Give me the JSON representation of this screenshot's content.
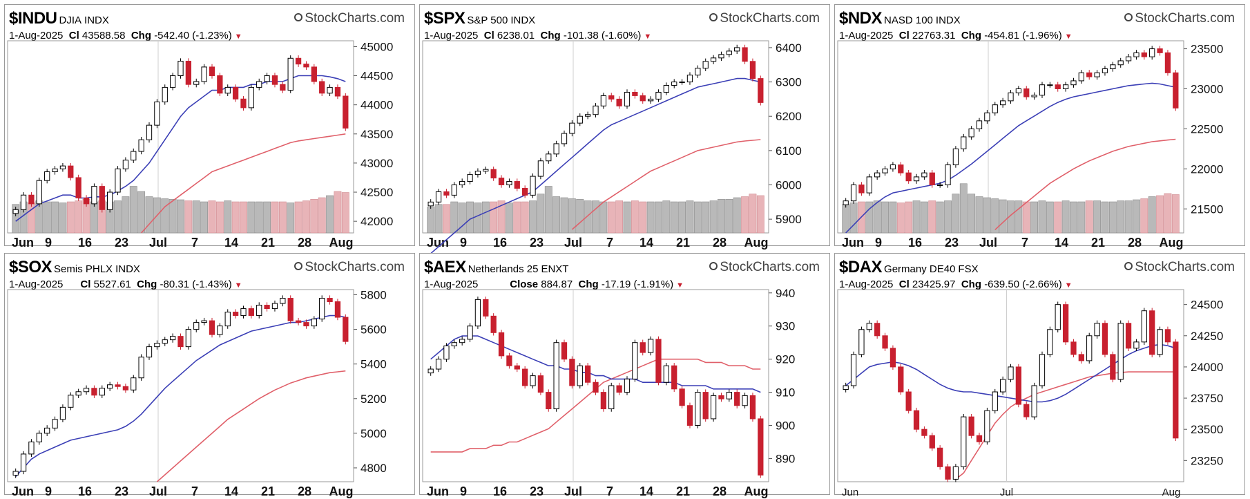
{
  "colors": {
    "up": "#000000",
    "down": "#c8202f",
    "ma_short": "#3b3fb6",
    "ma_long": "#e0606a",
    "vol_up": "#b9b9b9",
    "vol_down": "#e8b4b8"
  },
  "brand": "StockCharts.com",
  "panels": [
    {
      "symbol": "$INDU",
      "name": "DJIA",
      "exchange": "INDX",
      "date": "1-Aug-2025",
      "close_label": "Cl",
      "close": "43588.58",
      "chg_label": "Chg",
      "chg": "-542.40 (-1.23%)"
    },
    {
      "symbol": "$SPX",
      "name": "S&P 500",
      "exchange": "INDX",
      "date": "1-Aug-2025",
      "close_label": "Cl",
      "close": "6238.01",
      "chg_label": "Chg",
      "chg": "-101.38 (-1.60%)"
    },
    {
      "symbol": "$NDX",
      "name": "NASD 100",
      "exchange": "INDX",
      "date": "1-Aug-2025",
      "close_label": "Cl",
      "close": "22763.31",
      "chg_label": "Chg",
      "chg": "-454.81 (-1.96%)"
    },
    {
      "symbol": "$SOX",
      "name": "Semis PHLX",
      "exchange": "INDX",
      "date": "1-Aug-2025",
      "close_label": "Cl",
      "close": "5527.61",
      "chg_label": "Chg",
      "chg": "-80.31 (-1.43%)"
    },
    {
      "symbol": "$AEX",
      "name": "Netherlands 25",
      "exchange": "ENXT",
      "date": "1-Aug-2025",
      "close_label": "Close",
      "close": "884.87",
      "chg_label": "Chg",
      "chg": "-17.19 (-1.91%)"
    },
    {
      "symbol": "$DAX",
      "name": "Germany DE40",
      "exchange": "FSX",
      "date": "1-Aug-2025",
      "close_label": "Cl",
      "close": "23425.97",
      "chg_label": "Chg",
      "chg": "-639.50 (-2.66%)"
    }
  ],
  "chart_data": [
    {
      "type": "candlestick",
      "ylim": [
        41800,
        45100
      ],
      "yticks": [
        "45000",
        "44500",
        "44000",
        "43500",
        "43000",
        "42500",
        "42000"
      ],
      "volume": true,
      "xticks": [
        "Jun",
        "9",
        "16",
        "23",
        "Jul",
        "7",
        "14",
        "21",
        "28",
        "Aug"
      ],
      "close": [
        42200,
        42450,
        42300,
        42700,
        42850,
        42900,
        42950,
        42750,
        42400,
        42300,
        42600,
        42200,
        42500,
        42900,
        43050,
        43200,
        43400,
        43650,
        44050,
        44300,
        44500,
        44750,
        44350,
        44400,
        44650,
        44500,
        44200,
        44300,
        44100,
        43950,
        44300,
        44400,
        44500,
        44350,
        44250,
        44800,
        44700,
        44650,
        44400,
        44200,
        44300,
        44150,
        43600
      ],
      "ma_short": [
        42000,
        42100,
        42200,
        42300,
        42350,
        42400,
        42450,
        42450,
        42400,
        42400,
        42420,
        42420,
        42450,
        42520,
        42600,
        42700,
        42850,
        43000,
        43200,
        43400,
        43600,
        43800,
        43950,
        44050,
        44150,
        44250,
        44250,
        44300,
        44300,
        44300,
        44350,
        44350,
        44400,
        44400,
        44400,
        44450,
        44500,
        44500,
        44500,
        44500,
        44480,
        44450,
        44400
      ],
      "ma_long": [
        null,
        null,
        null,
        null,
        null,
        null,
        null,
        null,
        null,
        null,
        null,
        null,
        null,
        null,
        null,
        null,
        41800,
        41950,
        42100,
        42250,
        42350,
        42450,
        42550,
        42650,
        42750,
        42850,
        42900,
        42950,
        43000,
        43050,
        43100,
        43150,
        43200,
        43250,
        43300,
        43350,
        43380,
        43400,
        43420,
        43440,
        43460,
        43480,
        43500
      ],
      "vol": [
        0.55,
        0.6,
        0.58,
        0.62,
        0.6,
        0.6,
        0.58,
        0.6,
        0.62,
        0.65,
        0.6,
        0.62,
        0.6,
        0.62,
        0.7,
        0.9,
        0.8,
        0.7,
        0.68,
        0.66,
        0.65,
        0.64,
        0.62,
        0.62,
        0.6,
        0.62,
        0.6,
        0.62,
        0.6,
        0.6,
        0.6,
        0.6,
        0.6,
        0.6,
        0.6,
        0.58,
        0.6,
        0.62,
        0.65,
        0.68,
        0.72,
        0.8,
        0.78
      ]
    },
    {
      "type": "candlestick",
      "ylim": [
        5860,
        6420
      ],
      "yticks": [
        "6400",
        "6300",
        "6200",
        "6100",
        "6000",
        "5900"
      ],
      "volume": true,
      "xticks": [
        "Jun",
        "9",
        "16",
        "23",
        "Jul",
        "7",
        "14",
        "21",
        "28",
        "Aug"
      ],
      "close": [
        5950,
        5980,
        5970,
        6000,
        6010,
        6030,
        6040,
        6045,
        6020,
        6000,
        6010,
        5990,
        5970,
        6025,
        6070,
        6090,
        6120,
        6150,
        6180,
        6200,
        6205,
        6230,
        6260,
        6250,
        6230,
        6270,
        6260,
        6245,
        6250,
        6270,
        6290,
        6300,
        6300,
        6320,
        6340,
        6360,
        6370,
        6380,
        6390,
        6400,
        6360,
        6310,
        6240
      ],
      "ma_short": [
        5800,
        5820,
        5840,
        5860,
        5880,
        5900,
        5910,
        5920,
        5930,
        5940,
        5950,
        5960,
        5970,
        5980,
        6000,
        6020,
        6040,
        6060,
        6080,
        6100,
        6120,
        6140,
        6160,
        6175,
        6185,
        6195,
        6205,
        6215,
        6225,
        6235,
        6245,
        6255,
        6265,
        6275,
        6285,
        6290,
        6295,
        6300,
        6305,
        6310,
        6310,
        6305,
        6300
      ],
      "ma_long": [
        null,
        null,
        null,
        null,
        null,
        null,
        null,
        null,
        null,
        null,
        null,
        null,
        null,
        null,
        null,
        null,
        null,
        null,
        5870,
        5890,
        5910,
        5930,
        5950,
        5965,
        5980,
        5995,
        6010,
        6025,
        6040,
        6050,
        6060,
        6070,
        6080,
        6090,
        6100,
        6105,
        6110,
        6115,
        6120,
        6125,
        6128,
        6130,
        6132
      ],
      "vol": [
        0.5,
        0.55,
        0.55,
        0.6,
        0.58,
        0.6,
        0.58,
        0.6,
        0.6,
        0.62,
        0.58,
        0.6,
        0.6,
        0.62,
        0.75,
        0.9,
        0.7,
        0.68,
        0.66,
        0.65,
        0.62,
        0.62,
        0.6,
        0.6,
        0.62,
        0.6,
        0.62,
        0.6,
        0.6,
        0.6,
        0.62,
        0.6,
        0.6,
        0.62,
        0.6,
        0.6,
        0.62,
        0.65,
        0.65,
        0.68,
        0.7,
        0.75,
        0.72
      ]
    },
    {
      "type": "candlestick",
      "ylim": [
        21200,
        23600
      ],
      "yticks": [
        "23500",
        "23000",
        "22500",
        "22000",
        "21500"
      ],
      "volume": true,
      "xticks": [
        "Jun",
        "9",
        "16",
        "23",
        "Jul",
        "7",
        "14",
        "21",
        "28",
        "Aug"
      ],
      "close": [
        21600,
        21800,
        21700,
        21900,
        21950,
        22000,
        22050,
        21950,
        21850,
        21900,
        21950,
        21800,
        21800,
        22050,
        22250,
        22400,
        22500,
        22600,
        22700,
        22800,
        22850,
        22950,
        23000,
        22900,
        22920,
        23050,
        23050,
        23000,
        23050,
        23100,
        23200,
        23150,
        23200,
        23250,
        23300,
        23350,
        23400,
        23450,
        23400,
        23500,
        23450,
        23200,
        22760
      ],
      "ma_short": [
        21200,
        21300,
        21400,
        21500,
        21580,
        21650,
        21700,
        21720,
        21740,
        21760,
        21780,
        21800,
        21820,
        21860,
        21920,
        21990,
        22060,
        22140,
        22220,
        22300,
        22380,
        22460,
        22540,
        22600,
        22660,
        22720,
        22780,
        22830,
        22870,
        22900,
        22920,
        22940,
        22960,
        22980,
        23000,
        23020,
        23040,
        23050,
        23060,
        23070,
        23060,
        23040,
        23020
      ],
      "ma_long": [
        null,
        null,
        null,
        null,
        null,
        null,
        null,
        null,
        null,
        null,
        null,
        null,
        null,
        null,
        null,
        null,
        null,
        null,
        null,
        21240,
        21330,
        21420,
        21500,
        21580,
        21660,
        21740,
        21820,
        21880,
        21940,
        22000,
        22050,
        22100,
        22140,
        22180,
        22220,
        22250,
        22280,
        22300,
        22320,
        22340,
        22350,
        22360,
        22370
      ],
      "vol": [
        0.55,
        0.58,
        0.6,
        0.6,
        0.62,
        0.6,
        0.6,
        0.58,
        0.6,
        0.62,
        0.6,
        0.62,
        0.6,
        0.62,
        0.75,
        0.95,
        0.75,
        0.7,
        0.68,
        0.66,
        0.64,
        0.62,
        0.62,
        0.6,
        0.6,
        0.62,
        0.6,
        0.6,
        0.62,
        0.6,
        0.6,
        0.62,
        0.62,
        0.6,
        0.6,
        0.62,
        0.62,
        0.64,
        0.66,
        0.7,
        0.72,
        0.76,
        0.74
      ]
    },
    {
      "type": "candlestick",
      "ylim": [
        4720,
        5830
      ],
      "yticks": [
        "5800",
        "5600",
        "5400",
        "5200",
        "5000",
        "4800"
      ],
      "volume": false,
      "xticks": [
        "Jun",
        "9",
        "16",
        "23",
        "Jul",
        "7",
        "14",
        "21",
        "28",
        "Aug"
      ],
      "close": [
        4780,
        4880,
        4950,
        5000,
        5030,
        5080,
        5150,
        5220,
        5240,
        5260,
        5220,
        5260,
        5280,
        5270,
        5250,
        5320,
        5440,
        5500,
        5520,
        5540,
        5560,
        5500,
        5600,
        5640,
        5650,
        5570,
        5620,
        5700,
        5680,
        5720,
        5680,
        5740,
        5720,
        5750,
        5780,
        5650,
        5640,
        5620,
        5660,
        5780,
        5760,
        5670,
        5530
      ],
      "ma_short": [
        4750,
        4800,
        4850,
        4880,
        4900,
        4920,
        4940,
        4960,
        4970,
        4980,
        4990,
        5000,
        5010,
        5020,
        5040,
        5070,
        5110,
        5160,
        5210,
        5260,
        5300,
        5340,
        5380,
        5420,
        5450,
        5480,
        5510,
        5530,
        5550,
        5570,
        5590,
        5600,
        5610,
        5620,
        5630,
        5640,
        5640,
        5650,
        5660,
        5670,
        5680,
        5680,
        5670
      ],
      "ma_long": [
        null,
        null,
        null,
        null,
        null,
        null,
        null,
        null,
        null,
        null,
        null,
        null,
        null,
        null,
        null,
        null,
        null,
        null,
        4720,
        4760,
        4800,
        4840,
        4880,
        4920,
        4960,
        5000,
        5040,
        5080,
        5110,
        5140,
        5170,
        5200,
        5225,
        5250,
        5270,
        5290,
        5305,
        5320,
        5330,
        5340,
        5350,
        5355,
        5360
      ],
      "vol": []
    },
    {
      "type": "candlestick",
      "ylim": [
        883,
        941
      ],
      "yticks": [
        "940",
        "930",
        "920",
        "910",
        "900",
        "890"
      ],
      "volume": false,
      "xticks": [
        "Jun",
        "9",
        "16",
        "23",
        "Jul",
        "7",
        "14",
        "21",
        "28",
        "Aug"
      ],
      "close": [
        917,
        920,
        924,
        925,
        926,
        930,
        938,
        933,
        928,
        921,
        918,
        917,
        912,
        915,
        910,
        905,
        925,
        920,
        912,
        918,
        913,
        910,
        905,
        912,
        910,
        914,
        925,
        922,
        926,
        913,
        918,
        911,
        906,
        900,
        910,
        902,
        909,
        908,
        910,
        906,
        909,
        902,
        885
      ],
      "ma_short": [
        920,
        922,
        924,
        926,
        927,
        927,
        927,
        926,
        925,
        924,
        923,
        922,
        921,
        920,
        919,
        918,
        918,
        917,
        917,
        916,
        916,
        915,
        915,
        914,
        914,
        914,
        914,
        913,
        913,
        913,
        913,
        913,
        912,
        912,
        912,
        912,
        911,
        911,
        911,
        911,
        911,
        911,
        910
      ],
      "ma_long": [
        892,
        892,
        892,
        892,
        892,
        893,
        893,
        893,
        894,
        894,
        895,
        895,
        896,
        897,
        898,
        899,
        901,
        903,
        905,
        907,
        909,
        911,
        913,
        914,
        915,
        916,
        917,
        918,
        919,
        920,
        920,
        920,
        920,
        920,
        920,
        919,
        919,
        919,
        918,
        918,
        918,
        917,
        917
      ],
      "vol": []
    },
    {
      "type": "candlestick",
      "ylim": [
        23080,
        24620
      ],
      "yticks": [
        "24500",
        "24250",
        "24000",
        "23750",
        "23500",
        "23250"
      ],
      "volume": false,
      "xticks": [
        "Jun",
        "Jul",
        "Aug"
      ],
      "close": [
        23850,
        24100,
        24300,
        24350,
        24250,
        24150,
        24000,
        23800,
        23650,
        23500,
        23450,
        23350,
        23200,
        23100,
        23200,
        23600,
        23450,
        23400,
        23650,
        23800,
        23900,
        24000,
        23700,
        23600,
        23850,
        24100,
        24300,
        24500,
        24200,
        24100,
        24050,
        24250,
        24350,
        24100,
        23900,
        24350,
        24150,
        24200,
        24450,
        24100,
        24300,
        24200,
        23430
      ],
      "ma_short": [
        23850,
        23900,
        23950,
        24000,
        24020,
        24030,
        24040,
        24030,
        24010,
        23980,
        23940,
        23900,
        23860,
        23830,
        23810,
        23800,
        23800,
        23790,
        23780,
        23770,
        23760,
        23750,
        23740,
        23730,
        23720,
        23720,
        23730,
        23750,
        23780,
        23820,
        23860,
        23900,
        23940,
        23980,
        24020,
        24060,
        24100,
        24130,
        24150,
        24170,
        24180,
        24170,
        24150
      ],
      "ma_long": [
        null,
        null,
        null,
        null,
        null,
        null,
        null,
        null,
        null,
        null,
        null,
        null,
        null,
        null,
        23100,
        23150,
        23250,
        23350,
        23450,
        23550,
        23620,
        23680,
        23720,
        23750,
        23780,
        23800,
        23820,
        23840,
        23860,
        23880,
        23900,
        23920,
        23930,
        23940,
        23950,
        23955,
        23960,
        23960,
        23960,
        23960,
        23960,
        23960,
        23960
      ],
      "vol": []
    }
  ]
}
